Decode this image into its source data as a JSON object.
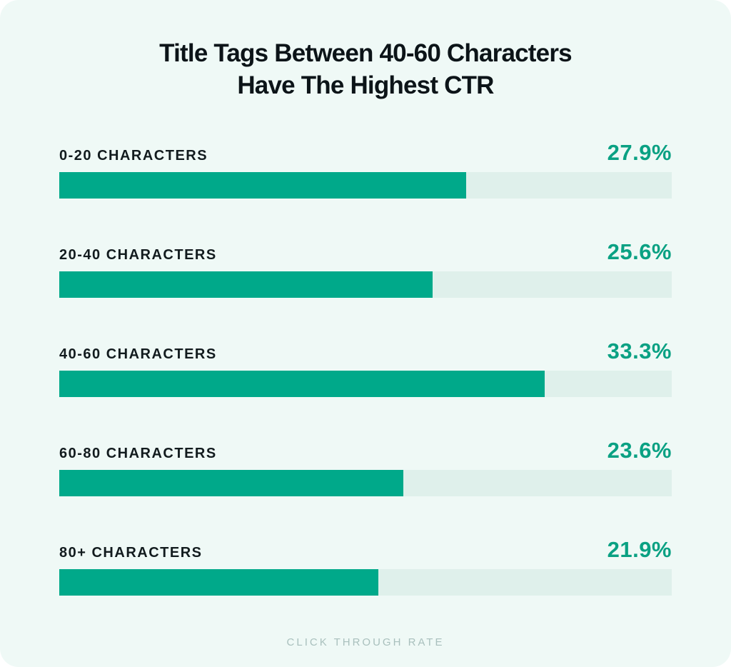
{
  "title": {
    "line1": "Title Tags Between 40-60 Characters",
    "line2": "Have The Highest CTR"
  },
  "footer": {
    "caption": "CLICK THROUGH RATE"
  },
  "chart_data": {
    "type": "bar",
    "orientation": "horizontal",
    "title": "Title Tags Between 40-60 Characters Have The Highest CTR",
    "xlabel": "CLICK THROUGH RATE",
    "ylabel": "",
    "categories": [
      "0-20 CHARACTERS",
      "20-40 CHARACTERS",
      "40-60 CHARACTERS",
      "60-80 CHARACTERS",
      "80+ CHARACTERS"
    ],
    "values": [
      27.9,
      25.6,
      33.3,
      23.6,
      21.9
    ],
    "value_labels": [
      "27.9%",
      "25.6%",
      "33.3%",
      "23.6%",
      "21.9%"
    ],
    "unit": "%",
    "xlim": [
      0,
      42
    ],
    "grid": false,
    "legend": false
  },
  "colors": {
    "page_background": "#FFFFFF",
    "card_background": "#EFF9F6",
    "bar_fill": "#00A98A",
    "bar_track": "#DFF0EB",
    "value_text": "#0AA183",
    "label_text": "#121B1E",
    "title_text": "#0C1418",
    "footer_text": "#A9C0BD"
  }
}
